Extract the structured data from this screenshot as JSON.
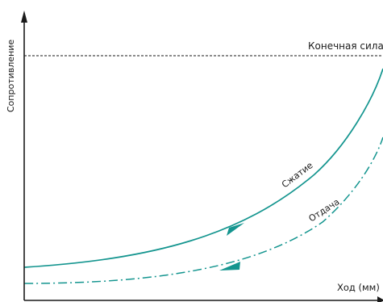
{
  "diagram": {
    "y_axis_label": "Сопротивление",
    "x_axis_label": "Ход (мм)",
    "final_force_label": "Конечная сила",
    "compression_label": "Сжатие",
    "rebound_label": "Отдача",
    "curve_color": "#14958f",
    "axis_color": "#1a1a1a"
  }
}
